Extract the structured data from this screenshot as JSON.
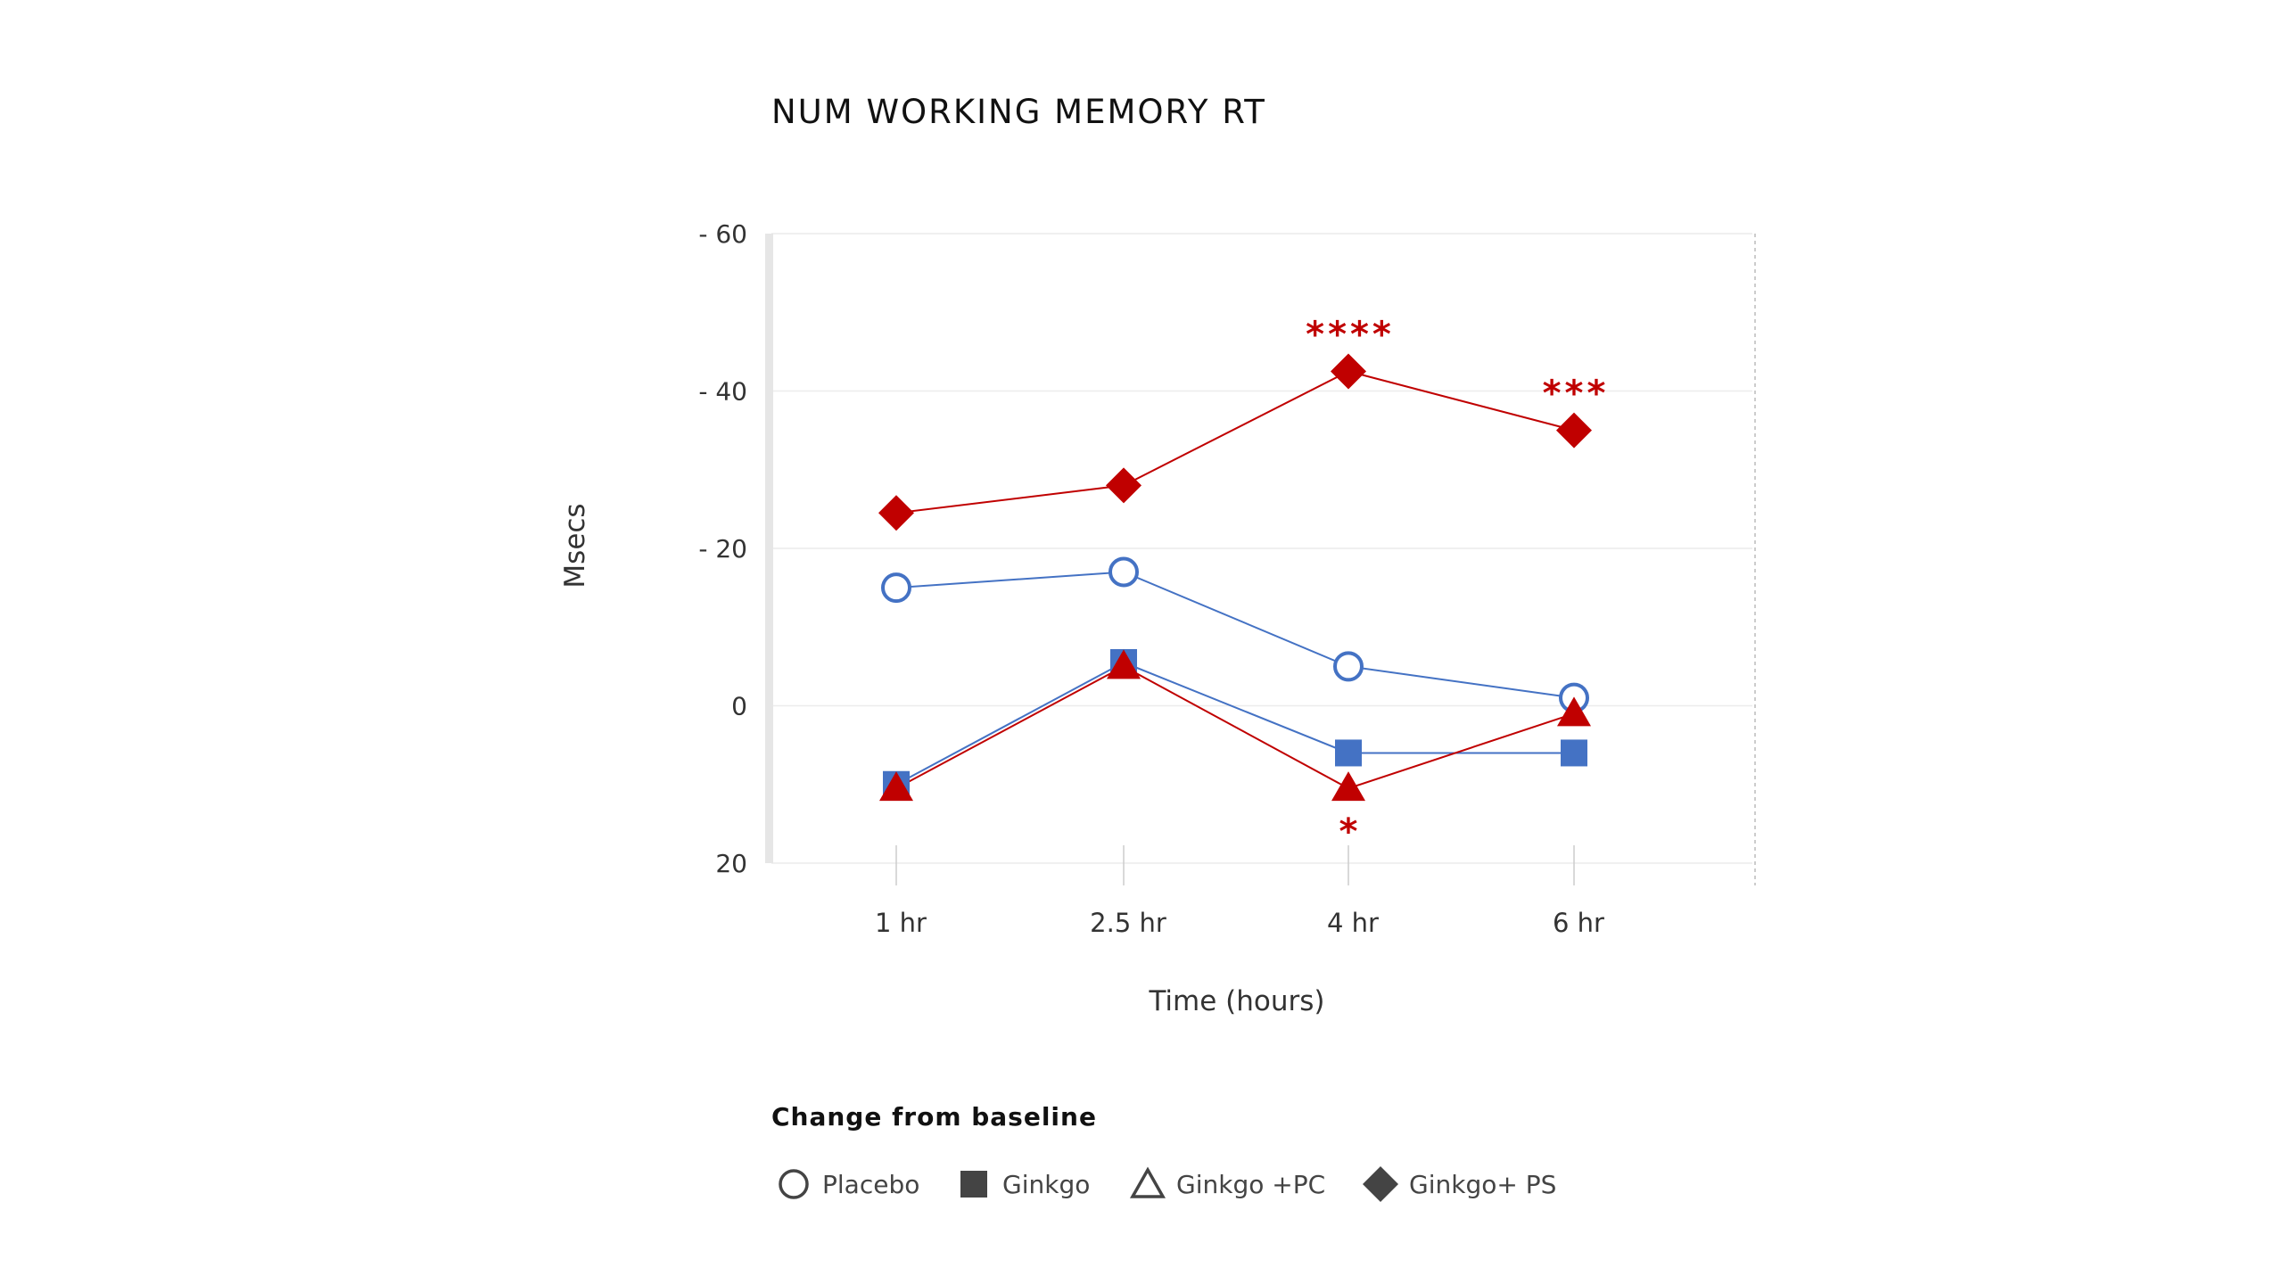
{
  "chart_data": {
    "type": "line",
    "title": "NUM WORKING MEMORY RT",
    "xlabel": "Time (hours)",
    "ylabel": "Msecs",
    "categories": [
      "1 hr",
      "2.5 hr",
      "4 hr",
      "6 hr"
    ],
    "ylim": [
      -20,
      60
    ],
    "yticks": [
      {
        "value": 60,
        "label": "- 60"
      },
      {
        "value": 40,
        "label": "- 40"
      },
      {
        "value": 20,
        "label": "- 20"
      },
      {
        "value": 0,
        "label": "0"
      },
      {
        "value": -20,
        "label": "20"
      }
    ],
    "grid": true,
    "legend_position": "bottom",
    "legend_title": "Change from baseline",
    "series": [
      {
        "name": "Placebo",
        "marker": "circle-open",
        "color": "#4472c4",
        "values": [
          15,
          17,
          5,
          1
        ]
      },
      {
        "name": "Ginkgo",
        "marker": "square",
        "color": "#4472c4",
        "values": [
          -10,
          5.5,
          -6,
          -6
        ]
      },
      {
        "name": "Ginkgo +PC",
        "marker": "triangle",
        "color": "#c00000",
        "values": [
          -10.5,
          5,
          -10.5,
          -1
        ]
      },
      {
        "name": "Ginkgo+ PS",
        "marker": "diamond",
        "color": "#c00000",
        "values": [
          24.5,
          28,
          42.5,
          35
        ]
      }
    ],
    "annotations": [
      {
        "text": "****",
        "series": "Ginkgo+ PS",
        "category": "4 hr",
        "position": "above"
      },
      {
        "text": "***",
        "series": "Ginkgo+ PS",
        "category": "6 hr",
        "position": "above"
      },
      {
        "text": "*",
        "series": "Ginkgo +PC",
        "category": "4 hr",
        "position": "below"
      }
    ]
  }
}
